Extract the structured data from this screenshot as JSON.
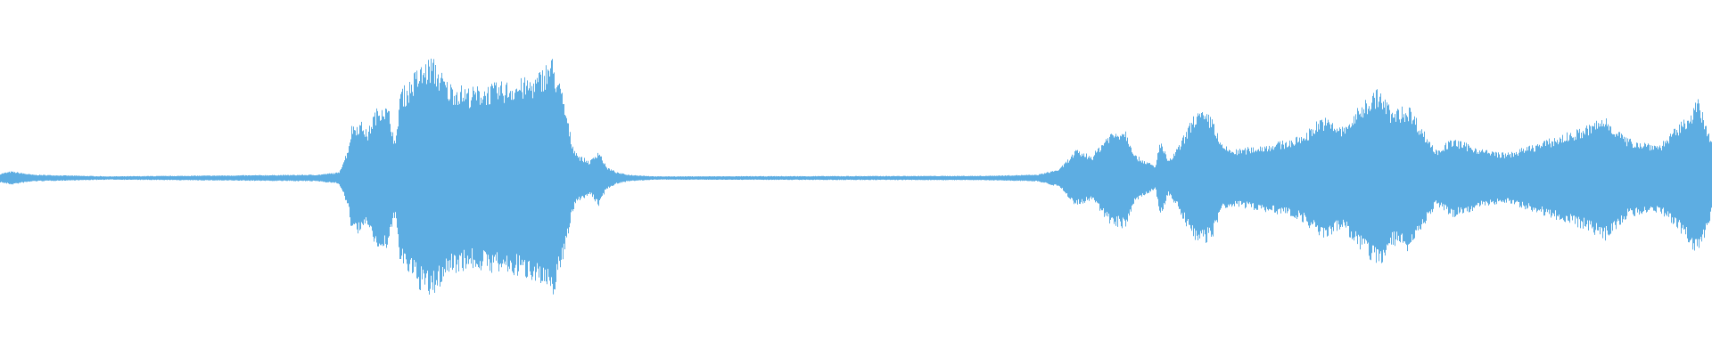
{
  "chart_data": {
    "type": "area",
    "kind": "audio-waveform",
    "title": "",
    "xlabel": "",
    "ylabel": "",
    "axes_visible": false,
    "grid": false,
    "legend": "none",
    "color": "#5dade2",
    "background": "#ffffff"
  }
}
